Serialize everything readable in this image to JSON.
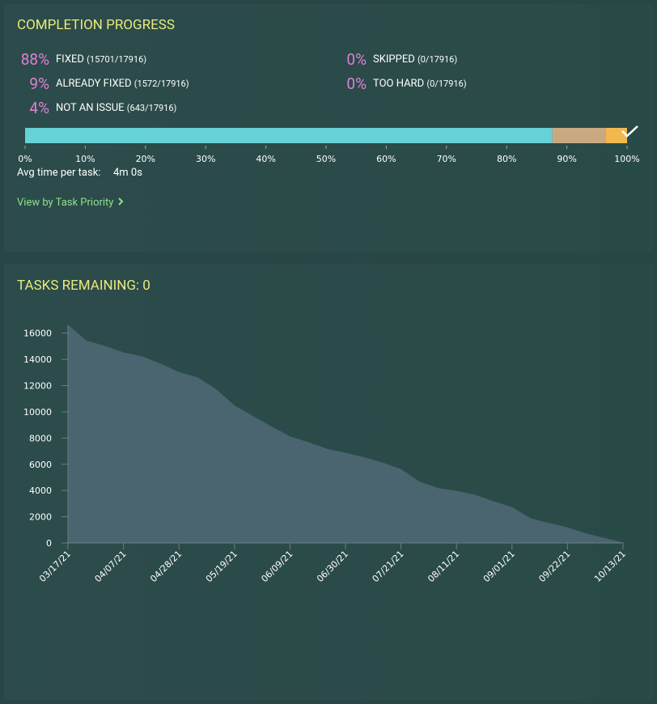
{
  "progress": {
    "title": "COMPLETION PROGRESS",
    "items": [
      {
        "name": "FIXED",
        "value": 87.6,
        "value_label": "88%",
        "count": "(15701/17916)",
        "color": "#66d1d6"
      },
      {
        "name": "ALREADY FIXED",
        "value": 8.8,
        "value_label": "9%",
        "count": "(1572/17916)",
        "color": "#c9a982"
      },
      {
        "name": "NOT AN ISSUE",
        "value": 3.6,
        "value_label": "4%",
        "count": "(643/17916)",
        "color": "#f2b84e"
      },
      {
        "name": "SKIPPED",
        "value": 0,
        "value_label": "0%",
        "count": "(0/17916)"
      },
      {
        "name": "TOO HARD",
        "value": 0,
        "value_label": "0%",
        "count": "(0/17916)"
      }
    ],
    "xlim": [
      0,
      100
    ],
    "xticks": [
      {
        "value": 0,
        "label": "0%"
      },
      {
        "value": 10,
        "label": "10%"
      },
      {
        "value": 20,
        "label": "20%"
      },
      {
        "value": 30,
        "label": "30%"
      },
      {
        "value": 40,
        "label": "40%"
      },
      {
        "value": 50,
        "label": "50%"
      },
      {
        "value": 60,
        "label": "60%"
      },
      {
        "value": 70,
        "label": "70%"
      },
      {
        "value": 80,
        "label": "80%"
      },
      {
        "value": 90,
        "label": "90%"
      },
      {
        "value": 100,
        "label": "100%"
      }
    ],
    "avg_time_label": "Avg time per task:",
    "avg_time": "4m 0s",
    "link": "View by Task Priority"
  },
  "chart_data": {
    "type": "area",
    "title": "TASKS REMAINING: 0",
    "x": [
      "03/17/21",
      "03/24/21",
      "03/31/21",
      "04/07/21",
      "04/14/21",
      "04/21/21",
      "04/28/21",
      "05/05/21",
      "05/12/21",
      "05/19/21",
      "05/26/21",
      "06/02/21",
      "06/09/21",
      "06/16/21",
      "06/23/21",
      "06/30/21",
      "07/07/21",
      "07/14/21",
      "07/21/21",
      "07/28/21",
      "08/04/21",
      "08/11/21",
      "08/18/21",
      "08/25/21",
      "09/01/21",
      "09/08/21",
      "09/15/21",
      "09/22/21",
      "09/29/21",
      "10/06/21",
      "10/13/21"
    ],
    "values": [
      16600,
      15400,
      15000,
      14500,
      14200,
      13650,
      13000,
      12600,
      11700,
      10450,
      9650,
      8850,
      8100,
      7650,
      7150,
      6850,
      6500,
      6100,
      5600,
      4650,
      4150,
      3950,
      3650,
      3150,
      2700,
      1850,
      1500,
      1150,
      700,
      350,
      0
    ],
    "color": "#4a6470",
    "xlim": [
      "03/17/21",
      "10/13/21"
    ],
    "xticks": [
      "03/17/21",
      "04/07/21",
      "04/28/21",
      "05/19/21",
      "06/09/21",
      "06/30/21",
      "07/21/21",
      "08/11/21",
      "09/01/21",
      "09/22/21",
      "10/13/21"
    ],
    "ylim": [
      0,
      16600
    ],
    "yticks": [
      0,
      2000,
      4000,
      6000,
      8000,
      10000,
      12000,
      14000,
      16000
    ]
  }
}
